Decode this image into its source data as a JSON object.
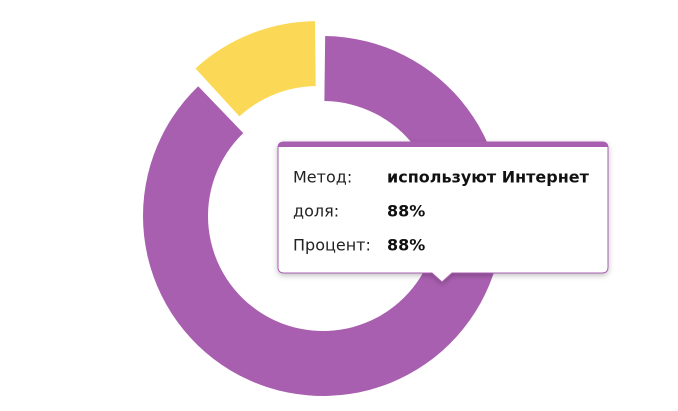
{
  "chart_data": {
    "type": "donut",
    "categories": [
      "используют Интернет",
      null
    ],
    "values": [
      88,
      12
    ],
    "value_labels": [
      "88%",
      null
    ],
    "colors": [
      "#a95fb0",
      "#fbd957"
    ],
    "exploded": [
      false,
      true
    ],
    "tooltip": {
      "labels": [
        "Метод:",
        "доля:",
        "Процент:"
      ]
    }
  }
}
